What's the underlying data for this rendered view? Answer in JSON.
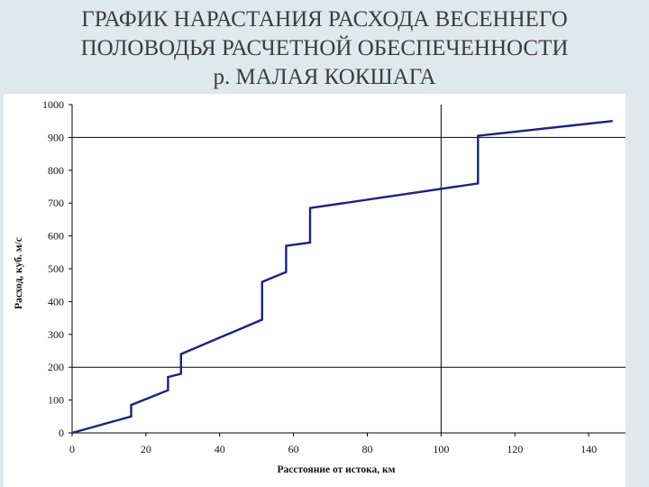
{
  "title": {
    "line1": "ГРАФИК НАРАСТАНИЯ РАСХОДА ВЕСЕННЕГО",
    "line2": "ПОЛОВОДЬЯ РАСЧЕТНОЙ ОБЕСПЕЧЕННОСТИ",
    "line3": "р. МАЛАЯ КОКШАГА"
  },
  "colors": {
    "background": "#dfe8ec",
    "title_text": "#3c3c3c",
    "series_line": "#1a237e",
    "grid_line": "#000000"
  },
  "chart_data": {
    "type": "line",
    "xlabel": "Расстояние от истока, км",
    "ylabel": "Расход, куб. м/с",
    "xlim": [
      0,
      150
    ],
    "ylim": [
      0,
      1000
    ],
    "xticks": [
      0,
      20,
      40,
      60,
      80,
      100,
      120,
      140
    ],
    "yticks": [
      0,
      100,
      200,
      300,
      400,
      500,
      600,
      700,
      800,
      900,
      1000
    ],
    "grid": {
      "horizontal_lines_at": [
        200,
        900
      ],
      "vertical_lines_at": [
        100
      ]
    },
    "series": [
      {
        "x": [
          0,
          16,
          16,
          26,
          26,
          29.5,
          29.5,
          51.5,
          51.5,
          58,
          58,
          64.5,
          64.5,
          110,
          110,
          146.5
        ],
        "y": [
          0,
          50,
          85,
          130,
          170,
          180,
          240,
          345,
          460,
          490,
          570,
          580,
          685,
          760,
          905,
          950
        ]
      }
    ]
  }
}
